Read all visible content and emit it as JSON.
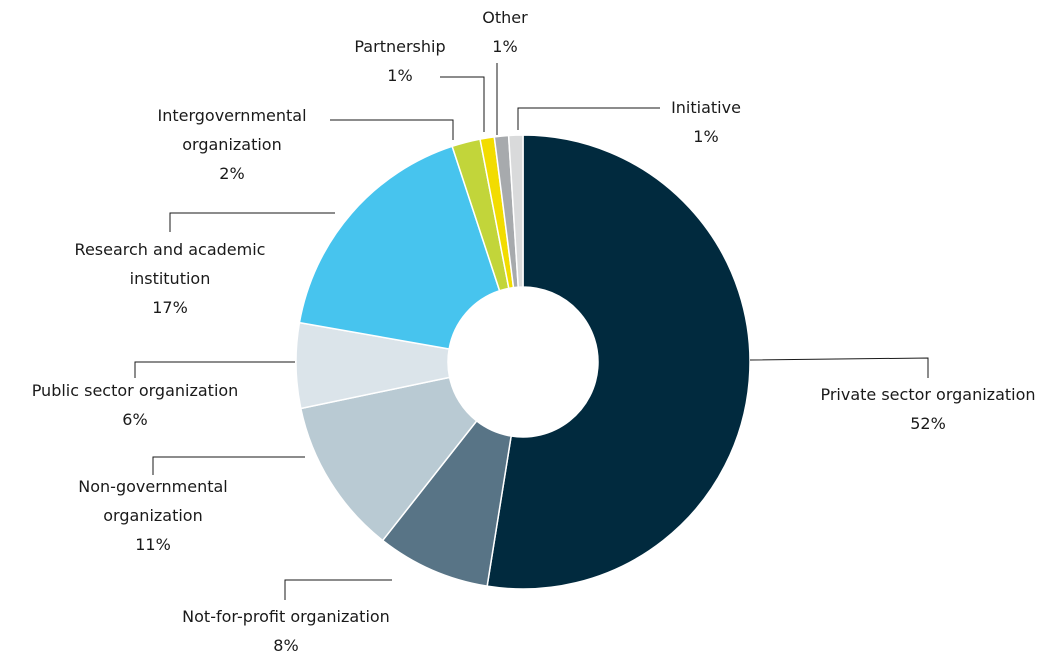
{
  "chart_data": {
    "type": "donut",
    "categories": [
      "Private sector organization",
      "Not-for-profit organization",
      "Non-governmental organization",
      "Public sector organization",
      "Research and academic institution",
      "Intergovernmental organization",
      "Partnership",
      "Other",
      "Initiative"
    ],
    "values": [
      52,
      8,
      11,
      6,
      17,
      2,
      1,
      1,
      1
    ],
    "value_labels": [
      "52%",
      "8%",
      "11%",
      "6%",
      "17%",
      "2%",
      "1%",
      "1%",
      "1%"
    ],
    "colors": [
      "#012a3e",
      "#587486",
      "#b9cad3",
      "#dbe4ea",
      "#47c4ee",
      "#c2d53a",
      "#f2dc00",
      "#a7aaad",
      "#d9dadb"
    ]
  }
}
